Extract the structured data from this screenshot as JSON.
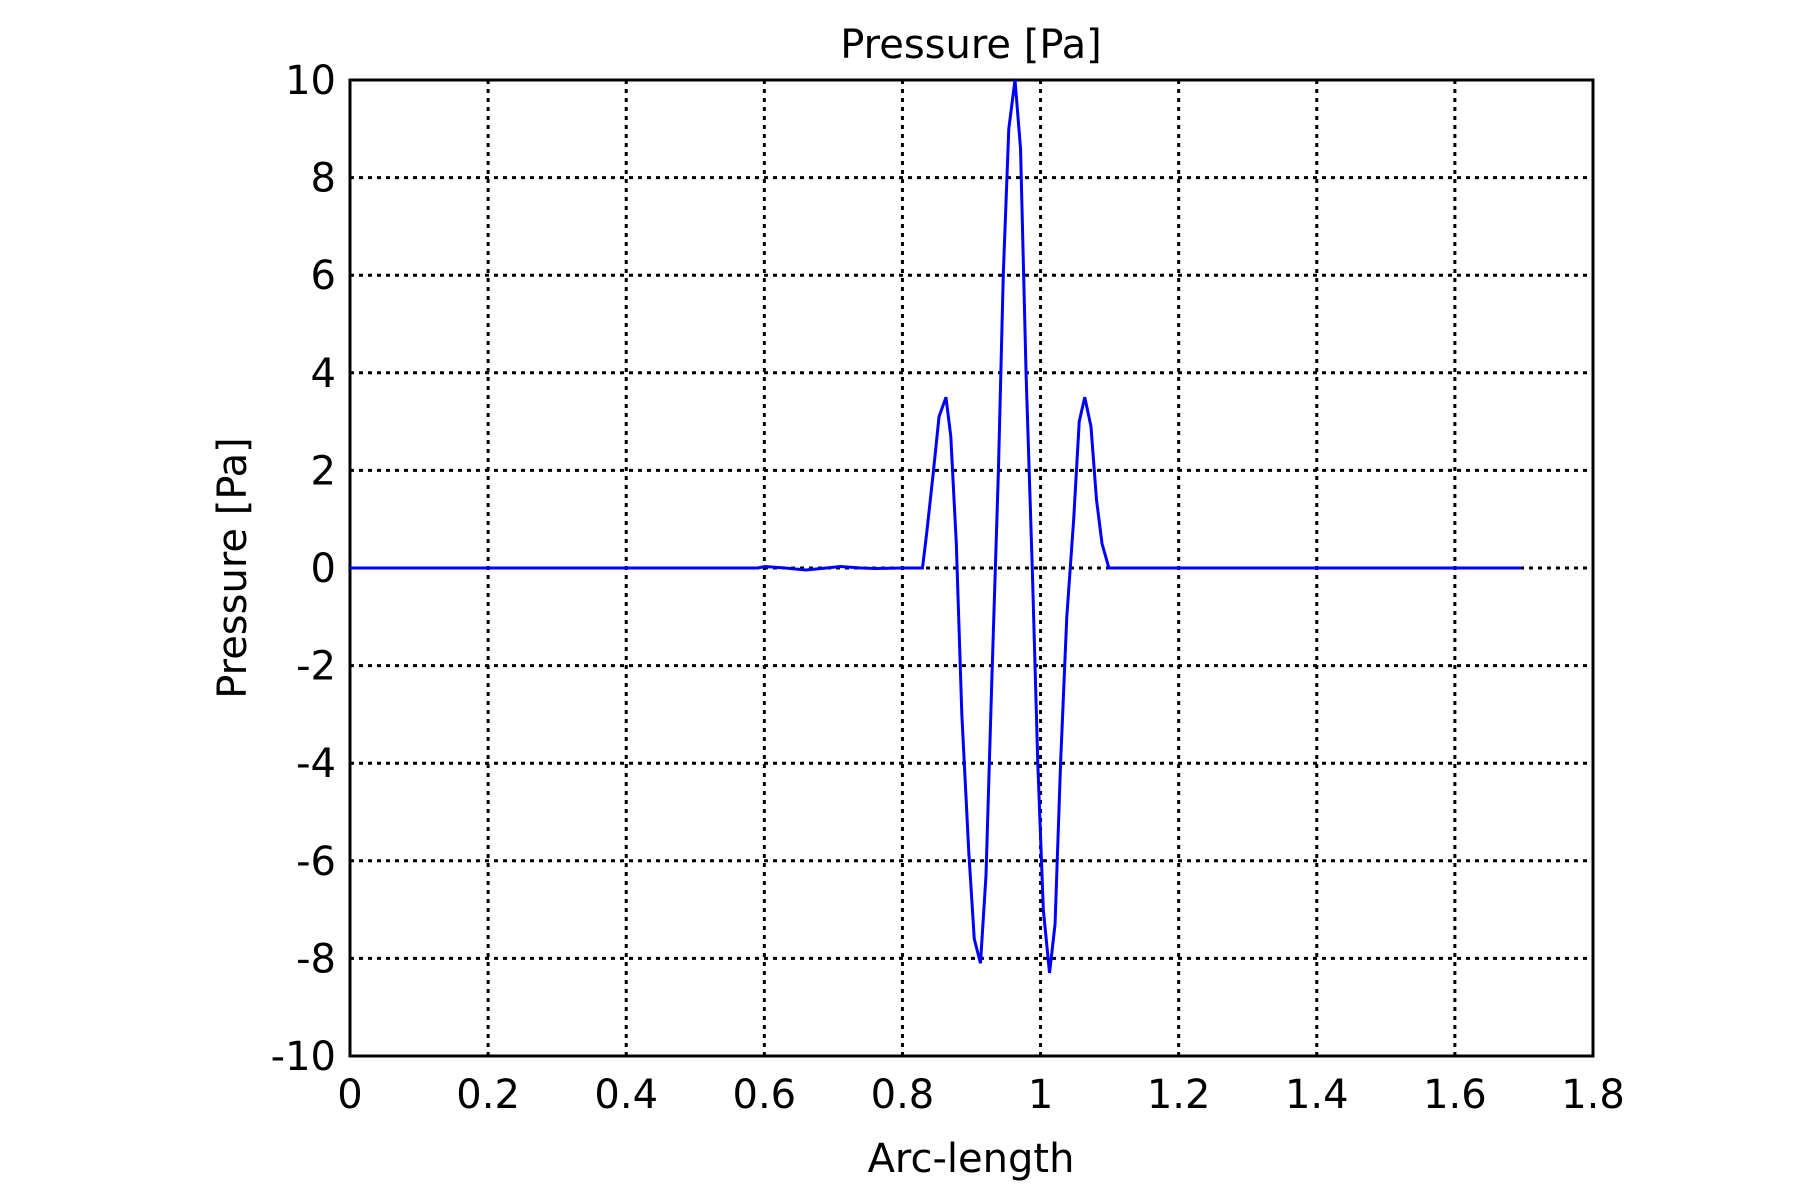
{
  "chart_data": {
    "type": "line",
    "title": "Pressure [Pa]",
    "xlabel": "Arc-length",
    "ylabel": "Pressure [Pa]",
    "xlim": [
      0,
      1.8
    ],
    "ylim": [
      -10,
      10
    ],
    "xticks": [
      "0",
      "0.2",
      "0.4",
      "0.6",
      "0.8",
      "1",
      "1.2",
      "1.4",
      "1.6",
      "1.8"
    ],
    "yticks": [
      "10",
      "8",
      "6",
      "4",
      "2",
      "0",
      "-2",
      "-4",
      "-6",
      "-8",
      "-10"
    ],
    "grid": true,
    "series": [
      {
        "color": "#0000ff",
        "x": [
          0,
          0.2,
          0.4,
          0.59,
          0.601,
          0.63,
          0.66,
          0.69,
          0.71,
          0.74,
          0.76,
          0.8,
          0.829,
          0.835,
          0.845,
          0.853,
          0.863,
          0.87,
          0.878,
          0.886,
          0.896,
          0.904,
          0.913,
          0.921,
          0.929,
          0.939,
          0.946,
          0.954,
          0.963,
          0.971,
          0.979,
          0.988,
          0.996,
          1.004,
          1.013,
          1.021,
          1.029,
          1.038,
          1.048,
          1.056,
          1.064,
          1.073,
          1.081,
          1.089,
          1.099,
          1.3,
          1.5,
          1.696
        ],
        "y": [
          0,
          0,
          0,
          0,
          0.03,
          0,
          -0.04,
          0,
          0.03,
          0,
          -0.01,
          0,
          0,
          0.7,
          2,
          3.1,
          3.5,
          2.7,
          0.5,
          -3,
          -5.8,
          -7.6,
          -8.1,
          -6.3,
          -2.5,
          2,
          6,
          9,
          10,
          8.6,
          4,
          0,
          -4,
          -7,
          -8.3,
          -7.3,
          -4,
          -1,
          1,
          3,
          3.5,
          2.9,
          1.4,
          0.5,
          0,
          0,
          0,
          0
        ]
      }
    ]
  }
}
